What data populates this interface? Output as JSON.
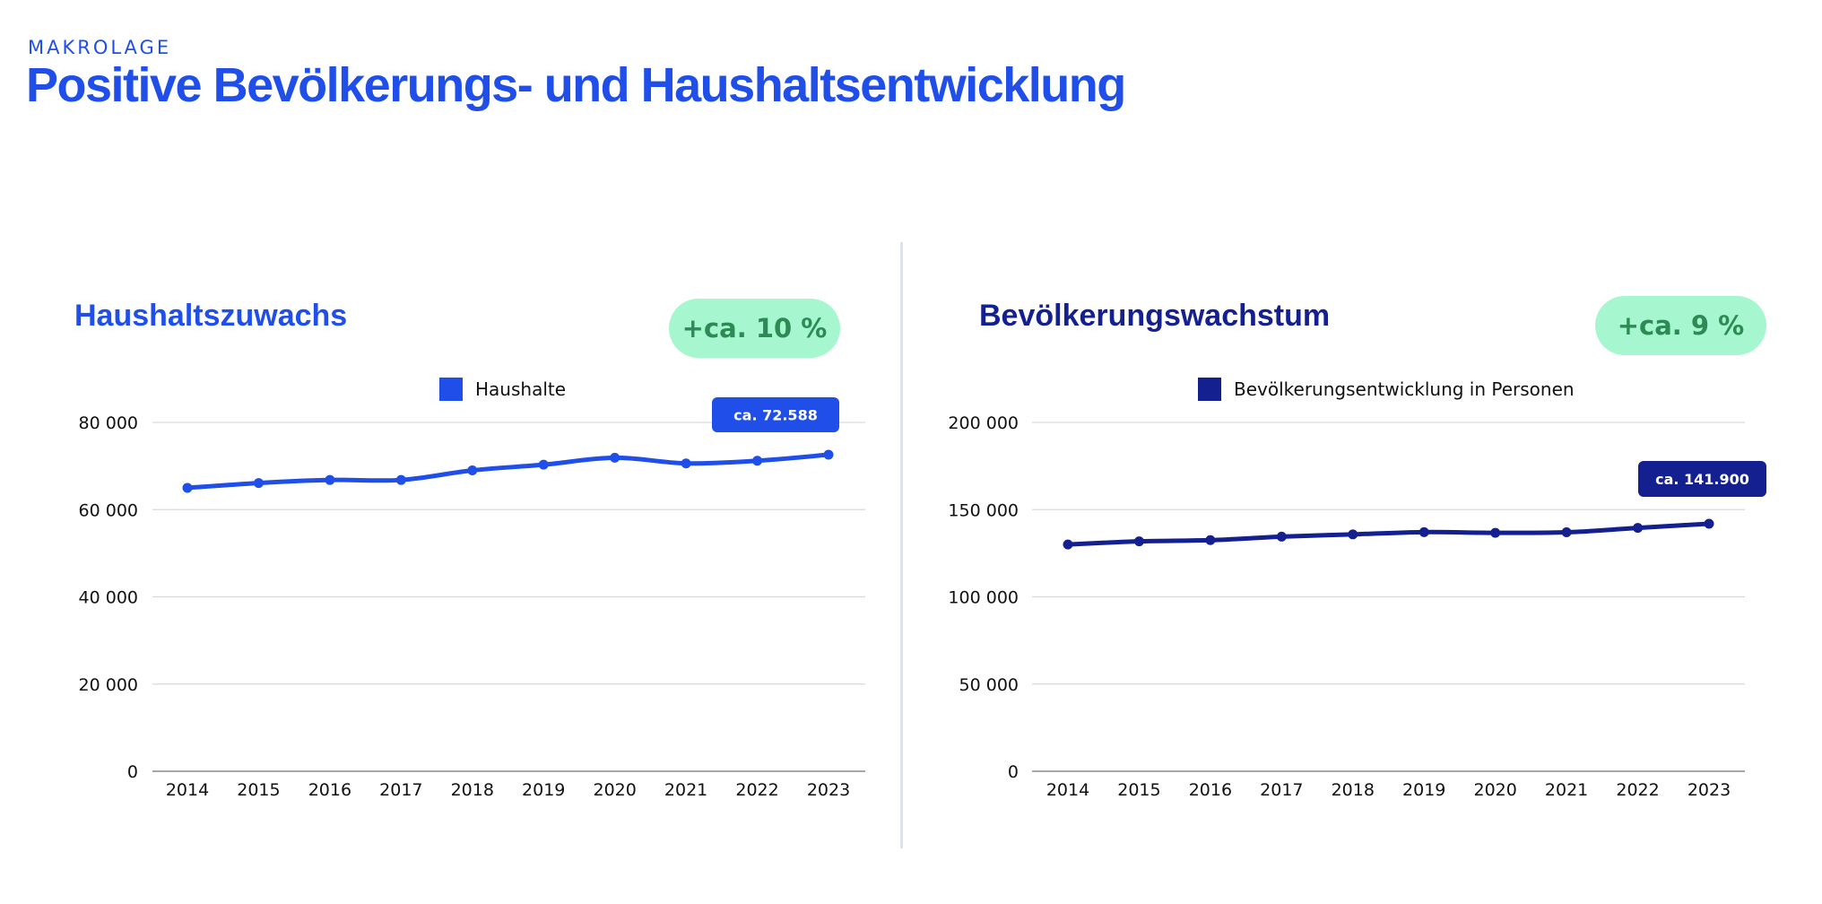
{
  "header": {
    "kicker": "MAKROLAGE",
    "title": "Positive Bevölkerungs- und Haushaltsentwicklung"
  },
  "colors": {
    "accent": "#1f4fe8",
    "navy": "#14208f",
    "pill_bg": "#a6f6cf",
    "pill_text": "#2d8a54",
    "grid": "#d9d9d9"
  },
  "chart_data": [
    {
      "type": "line",
      "title": "Haushaltszuwachs",
      "badge": "+ca. 10 %",
      "callout": "ca. 72.588",
      "color": "#1f4fe8",
      "categories": [
        "2014",
        "2015",
        "2016",
        "2017",
        "2018",
        "2019",
        "2020",
        "2021",
        "2022",
        "2023"
      ],
      "series": [
        {
          "name": "Haushalte",
          "values": [
            65000,
            66100,
            66800,
            66800,
            69000,
            70300,
            71900,
            70600,
            71200,
            72588
          ]
        }
      ],
      "ylim": [
        0,
        80000
      ],
      "yticks": [
        0,
        20000,
        40000,
        60000,
        80000
      ],
      "ytick_labels": [
        "0",
        "20 000",
        "40 000",
        "60 000",
        "80 000"
      ],
      "grid": true,
      "legend_position": "top-center",
      "xlabel": "",
      "ylabel": ""
    },
    {
      "type": "line",
      "title": "Bevölkerungswachstum",
      "badge": "+ca. 9 %",
      "callout": "ca. 141.900",
      "color": "#14208f",
      "categories": [
        "2014",
        "2015",
        "2016",
        "2017",
        "2018",
        "2019",
        "2020",
        "2021",
        "2022",
        "2023"
      ],
      "series": [
        {
          "name": "Bevölkerungsentwicklung in Personen",
          "values": [
            130000,
            131800,
            132500,
            134500,
            135800,
            137100,
            136700,
            137000,
            139500,
            141900
          ]
        }
      ],
      "ylim": [
        0,
        200000
      ],
      "yticks": [
        0,
        50000,
        100000,
        150000,
        200000
      ],
      "ytick_labels": [
        "0",
        "50 000",
        "100 000",
        "150 000",
        "200 000"
      ],
      "grid": true,
      "legend_position": "top-center",
      "xlabel": "",
      "ylabel": ""
    }
  ]
}
